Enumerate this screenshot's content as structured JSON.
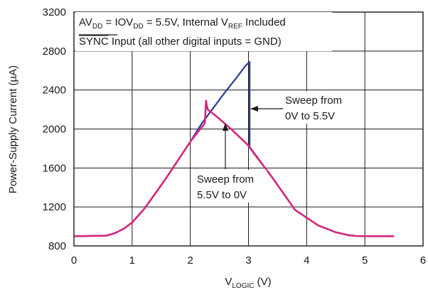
{
  "chart_data": {
    "type": "line",
    "xlabel_main": "V",
    "xlabel_sub": "LOGIC",
    "xlabel_unit": " (V)",
    "ylabel": "Power-Supply Current (µA)",
    "xlim": [
      0,
      6
    ],
    "ylim": [
      800,
      3200
    ],
    "x_ticks": [
      "0",
      "1",
      "2",
      "3",
      "4",
      "5",
      "6"
    ],
    "y_ticks": [
      "800",
      "1200",
      "1600",
      "2000",
      "2400",
      "2800",
      "3200"
    ],
    "grid": true,
    "conditions": {
      "line1": {
        "p1": "AV",
        "p1_sub": "DD",
        "p2": " = IOV",
        "p2_sub": "DD",
        "p3": " = 5.5V, Internal V",
        "p3_sub": "REF",
        "p4": " Included"
      },
      "line2": {
        "overline": "SYNC",
        "rest": " Input (all other digital inputs = GND)"
      }
    },
    "annotations": [
      {
        "line1": "Sweep from",
        "line2": "0V to 5.5V"
      },
      {
        "line1": "Sweep from",
        "line2": "5.5V to 0V"
      }
    ],
    "series": [
      {
        "color": "#2b3a93",
        "x": [
          0,
          0.55,
          0.7,
          0.85,
          1.0,
          1.2,
          1.4,
          1.6,
          1.8,
          2.0,
          2.2,
          2.4,
          2.6,
          2.8,
          2.95,
          3.02,
          3.02,
          3.08,
          3.4,
          3.8,
          4.2,
          4.5,
          4.72,
          4.85,
          5.0,
          5.5
        ],
        "y": [
          900,
          905,
          930,
          975,
          1040,
          1175,
          1340,
          1510,
          1690,
          1870,
          2060,
          2220,
          2380,
          2530,
          2650,
          2690,
          1810,
          1760,
          1510,
          1170,
          1010,
          940,
          910,
          902,
          900,
          900
        ]
      },
      {
        "color": "#d6267e",
        "x": [
          5.5,
          5.0,
          4.85,
          4.72,
          4.5,
          4.2,
          3.8,
          3.4,
          3.0,
          2.7,
          2.45,
          2.3,
          2.28,
          2.27,
          2.25,
          2.0,
          1.8,
          1.6,
          1.4,
          1.2,
          1.0,
          0.85,
          0.7,
          0.55,
          0
        ],
        "y": [
          900,
          900,
          902,
          910,
          940,
          1010,
          1170,
          1510,
          1830,
          2000,
          2130,
          2200,
          2250,
          2290,
          2060,
          1870,
          1690,
          1510,
          1340,
          1175,
          1040,
          975,
          930,
          905,
          900
        ]
      }
    ]
  }
}
